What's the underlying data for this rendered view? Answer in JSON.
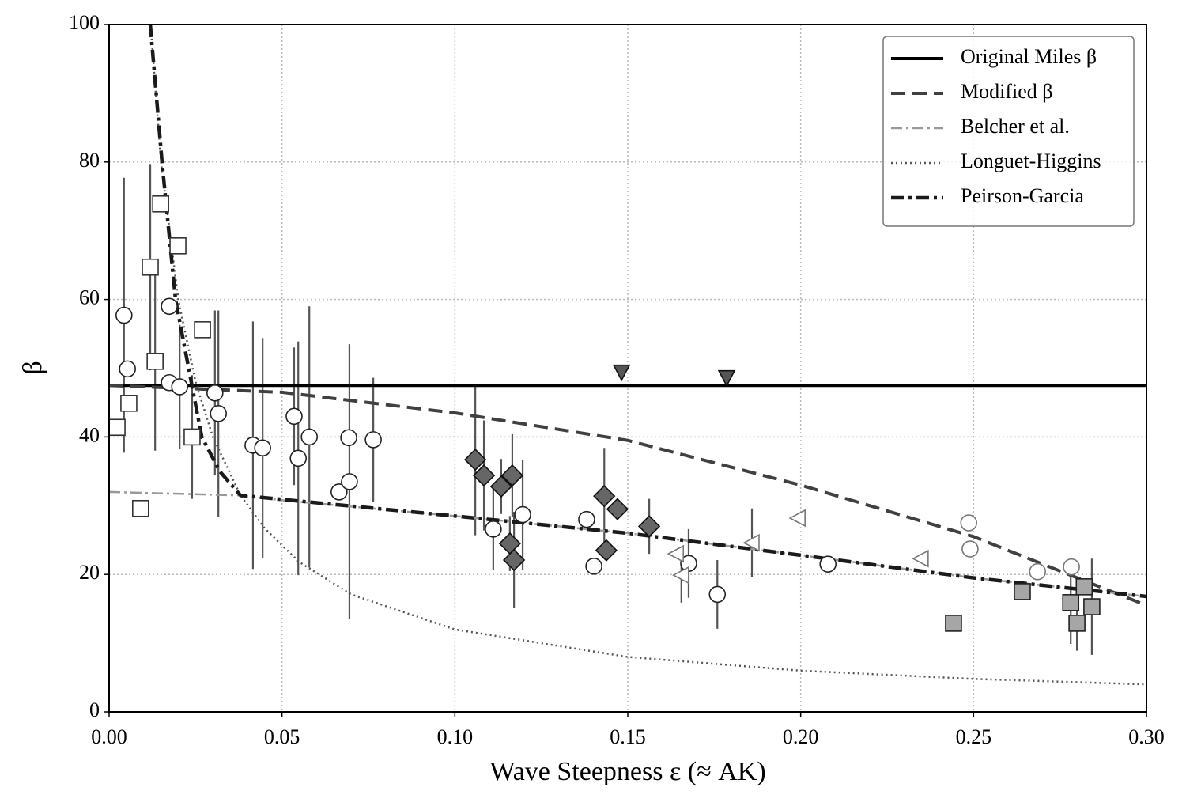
{
  "chart_data": {
    "type": "line",
    "xlabel": "Wave Steepness ε (≈ AK)",
    "ylabel": "β",
    "xlim": [
      0,
      0.3
    ],
    "ylim": [
      0,
      100
    ],
    "xticks": [
      {
        "value": 0,
        "label": "0.00"
      },
      0.05,
      {
        "value": 0.1,
        "label": "0.10"
      },
      0.15,
      {
        "value": 0.2,
        "label": "0.20"
      },
      0.25,
      {
        "value": 0.3,
        "label": "0.30"
      }
    ],
    "yticks": [
      0,
      20,
      40,
      60,
      80,
      100
    ],
    "grid": true,
    "legend": "upper right",
    "series": [
      {
        "type": "scatter",
        "marker": "square",
        "color": "white",
        "edgecolor": "#333333",
        "x": [
          0.0023,
          0.0057,
          0.0091,
          0.0119,
          0.0133,
          0.0149,
          0.0199,
          0.024,
          0.027
        ],
        "values": [
          41.4,
          44.9,
          29.6,
          64.7,
          51,
          73.9,
          67.8,
          40,
          55.6
        ],
        "errors": [
          0,
          0,
          0,
          15,
          13,
          0,
          0,
          9,
          0
        ]
      },
      {
        "type": "scatter",
        "marker": "circle",
        "color": "white",
        "edgecolor": "#222222",
        "x": [
          0.0043,
          0.0053,
          0.0174,
          0.0174,
          0.0204,
          0.0306,
          0.0316,
          0.0416,
          0.0444,
          0.0535,
          0.0547,
          0.0579,
          0.0665,
          0.0693,
          0.0695,
          0.0764,
          0.1111,
          0.1196,
          0.1381,
          0.1402,
          0.1676,
          0.1759,
          0.2079
        ],
        "values": [
          57.7,
          49.9,
          47.9,
          59,
          47.3,
          46.4,
          43.4,
          38.8,
          38.4,
          43,
          36.9,
          40,
          32,
          39.9,
          33.5,
          39.6,
          26.6,
          28.7,
          28,
          21.2,
          21.6,
          17.1,
          21.5
        ],
        "errors": [
          20,
          0,
          0,
          0,
          9,
          12,
          15,
          18,
          16,
          10,
          17,
          19,
          0,
          0,
          20,
          9,
          6,
          8,
          0,
          0,
          5,
          5,
          0
        ]
      },
      {
        "type": "scatter",
        "marker": "circle",
        "color": "white",
        "edgecolor": "#777777",
        "x": [
          0.2486,
          0.249,
          0.2685,
          0.2783
        ],
        "values": [
          27.5,
          23.7,
          20.4,
          21.1
        ],
        "errors": [
          0,
          0,
          0,
          0
        ]
      },
      {
        "type": "scatter",
        "marker": "diamond",
        "color": "#666666",
        "edgecolor": "#111111",
        "x": [
          0.1059,
          0.1084,
          0.1134,
          0.1166,
          0.1159,
          0.1171,
          0.1432,
          0.147,
          0.1438,
          0.1562
        ],
        "values": [
          36.7,
          34.4,
          32.8,
          34.4,
          24.5,
          22.1,
          31.4,
          29.5,
          23.5,
          27
        ],
        "errors": [
          11,
          8,
          4,
          6,
          4,
          7,
          7,
          0,
          0,
          4
        ]
      },
      {
        "type": "scatter",
        "marker": "triangle-down",
        "color": "#555555",
        "edgecolor": "#111111",
        "x": [
          0.1482,
          0.1786
        ],
        "values": [
          49.4,
          48.6
        ],
        "errors": [
          0,
          0
        ]
      },
      {
        "type": "scatter",
        "marker": "triangle-left",
        "color": "white",
        "edgecolor": "#777777",
        "x": [
          0.1992,
          0.1859,
          0.164,
          0.1655,
          0.2348
        ],
        "values": [
          28.2,
          24.6,
          23,
          19.9,
          22.3
        ],
        "errors": [
          0,
          5,
          0,
          4,
          0
        ]
      },
      {
        "type": "scatter",
        "marker": "square",
        "color": "#a6a6a6",
        "edgecolor": "#222222",
        "x": [
          0.2442,
          0.2641,
          0.2781,
          0.2799,
          0.2842,
          0.282
        ],
        "values": [
          12.9,
          17.5,
          15.9,
          12.9,
          15.3,
          18.2
        ],
        "errors": [
          0,
          0,
          6,
          4,
          7,
          0
        ]
      },
      {
        "name": "Original Miles β",
        "style": "solid",
        "color": "#000000",
        "x": [
          0,
          0.3
        ],
        "values": [
          47.5,
          47.5
        ]
      },
      {
        "name": "Modified β",
        "style": "dashed",
        "color": "#404040",
        "x": [
          0,
          0.05,
          0.1,
          0.15,
          0.2,
          0.25,
          0.3
        ],
        "values": [
          47.5,
          46.5,
          43.5,
          39.5,
          33,
          25.5,
          15.5
        ]
      },
      {
        "name": "Belcher et al.",
        "style": "dashdot",
        "color": "#999999",
        "x": [
          0,
          0.038,
          0.05,
          0.1,
          0.15,
          0.2,
          0.25,
          0.3
        ],
        "values": [
          32,
          31.5,
          30.8,
          28.5,
          26,
          22.8,
          19.5,
          16.8
        ]
      },
      {
        "name": "Longuet-Higgins",
        "style": "dotted",
        "color": "#555555",
        "x": [
          0.012,
          0.015,
          0.02,
          0.025,
          0.03,
          0.038,
          0.045,
          0.055,
          0.07,
          0.1,
          0.15,
          0.2,
          0.25,
          0.3
        ],
        "values": [
          100,
          80,
          60,
          48,
          40,
          31.5,
          26.7,
          21.8,
          17.1,
          12,
          8,
          6,
          4.8,
          4
        ]
      },
      {
        "name": "Peirson-Garcia",
        "style": "dashdot-bold",
        "color": "#1a1a1a",
        "x": [
          0.0119,
          0.0153,
          0.0192,
          0.0268,
          0.032,
          0.038,
          0.1,
          0.15,
          0.2,
          0.25,
          0.3
        ],
        "values": [
          100,
          80,
          60,
          40,
          35,
          31.5,
          28.5,
          26,
          22.8,
          19.5,
          16.8
        ]
      }
    ]
  }
}
